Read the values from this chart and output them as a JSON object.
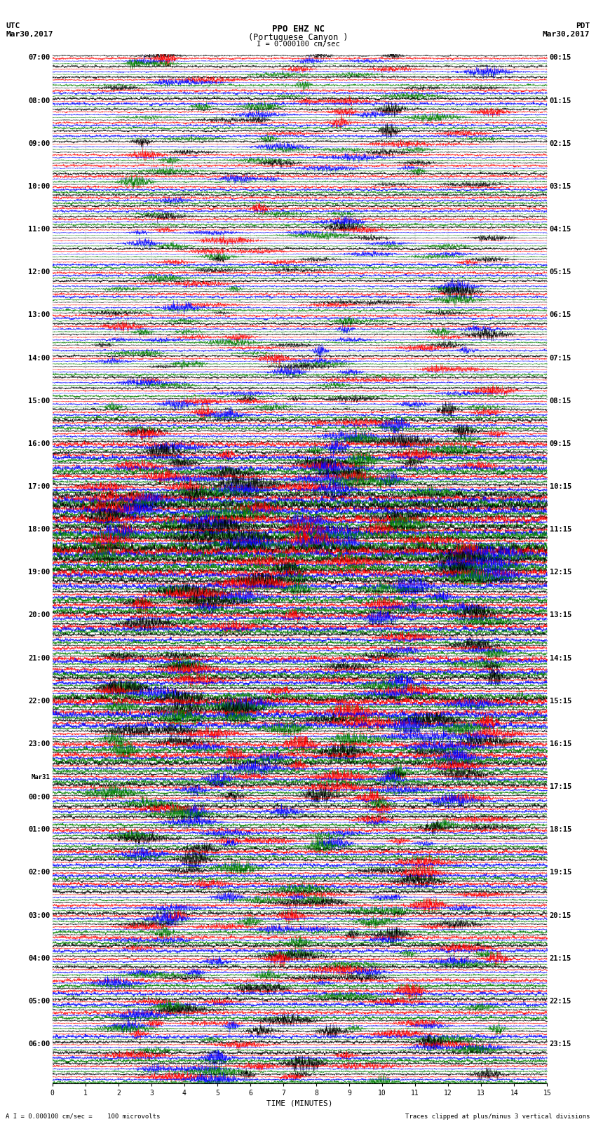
{
  "title_line1": "PPO EHZ NC",
  "title_line2": "(Portuguese Canyon )",
  "title_line3": "I = 0.000100 cm/sec",
  "left_header_line1": "UTC",
  "left_header_line2": "Mar30,2017",
  "right_header_line1": "PDT",
  "right_header_line2": "Mar30,2017",
  "xlabel": "TIME (MINUTES)",
  "footer_left": "A I = 0.000100 cm/sec =    100 microvolts",
  "footer_right": "Traces clipped at plus/minus 3 vertical divisions",
  "x_ticks": [
    0,
    1,
    2,
    3,
    4,
    5,
    6,
    7,
    8,
    9,
    10,
    11,
    12,
    13,
    14,
    15
  ],
  "left_time_labels": [
    "07:00",
    "",
    "",
    "",
    "08:00",
    "",
    "",
    "",
    "09:00",
    "",
    "",
    "",
    "10:00",
    "",
    "",
    "",
    "11:00",
    "",
    "",
    "",
    "12:00",
    "",
    "",
    "",
    "13:00",
    "",
    "",
    "",
    "14:00",
    "",
    "",
    "",
    "15:00",
    "",
    "",
    "",
    "16:00",
    "",
    "",
    "",
    "17:00",
    "",
    "",
    "",
    "18:00",
    "",
    "",
    "",
    "19:00",
    "",
    "",
    "",
    "20:00",
    "",
    "",
    "",
    "21:00",
    "",
    "",
    "",
    "22:00",
    "",
    "",
    "",
    "23:00",
    "",
    "",
    "",
    "Mar31",
    "00:00",
    "",
    "",
    "01:00",
    "",
    "",
    "",
    "02:00",
    "",
    "",
    "",
    "03:00",
    "",
    "",
    "",
    "04:00",
    "",
    "",
    "",
    "05:00",
    "",
    "",
    "",
    "06:00",
    "",
    "",
    ""
  ],
  "right_time_labels": [
    "00:15",
    "",
    "",
    "",
    "01:15",
    "",
    "",
    "",
    "02:15",
    "",
    "",
    "",
    "03:15",
    "",
    "",
    "",
    "04:15",
    "",
    "",
    "",
    "05:15",
    "",
    "",
    "",
    "06:15",
    "",
    "",
    "",
    "07:15",
    "",
    "",
    "",
    "08:15",
    "",
    "",
    "",
    "09:15",
    "",
    "",
    "",
    "10:15",
    "",
    "",
    "",
    "11:15",
    "",
    "",
    "",
    "12:15",
    "",
    "",
    "",
    "13:15",
    "",
    "",
    "",
    "14:15",
    "",
    "",
    "",
    "15:15",
    "",
    "",
    "",
    "16:15",
    "",
    "",
    "",
    "17:15",
    "",
    "",
    "",
    "18:15",
    "",
    "",
    "",
    "19:15",
    "",
    "",
    "",
    "20:15",
    "",
    "",
    "",
    "21:15",
    "",
    "",
    "",
    "22:15",
    "",
    "",
    "",
    "23:15",
    "",
    "",
    ""
  ],
  "trace_colors": [
    "black",
    "red",
    "blue",
    "green"
  ],
  "n_rows": 96,
  "traces_per_row": 4,
  "background_color": "white",
  "plot_bg_color": "white",
  "activity_profile": [
    1.0,
    1.0,
    1.0,
    1.0,
    1.2,
    1.2,
    1.0,
    1.0,
    1.0,
    1.0,
    1.0,
    1.0,
    1.0,
    1.0,
    1.0,
    1.0,
    1.0,
    1.0,
    1.0,
    1.0,
    1.0,
    1.0,
    1.0,
    1.0,
    1.0,
    1.0,
    1.0,
    1.0,
    1.0,
    1.0,
    1.0,
    1.0,
    1.2,
    1.2,
    1.5,
    1.5,
    2.0,
    2.0,
    2.5,
    2.5,
    3.0,
    3.0,
    3.5,
    3.5,
    4.0,
    4.0,
    4.0,
    3.5,
    3.0,
    3.0,
    2.5,
    2.5,
    2.0,
    2.0,
    1.5,
    1.5,
    2.0,
    2.0,
    2.0,
    2.5,
    3.0,
    3.0,
    3.0,
    2.5,
    2.5,
    2.5,
    2.0,
    2.0,
    1.8,
    1.8,
    1.8,
    1.5,
    1.5,
    1.5,
    1.5,
    1.5,
    1.5,
    1.5,
    1.5,
    1.5,
    1.5,
    1.5,
    1.5,
    1.5,
    1.5,
    1.5,
    1.5,
    1.5,
    1.5,
    1.5,
    1.5,
    1.5,
    1.5,
    1.5,
    1.5,
    1.5
  ]
}
